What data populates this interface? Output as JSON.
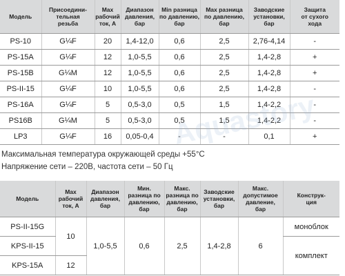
{
  "table1": {
    "header": [
      "Модель",
      "Присоедини-\nтельная\nрезьба",
      "Max\nрабочий\nток, А",
      "Диапазон\nдавления,\nбар",
      "Min разница\nпо давлению,\nбар",
      "Max разница\nпо давлению,\nбар",
      "Заводские\nустановки,\nбар",
      "Защита\nот сухого\nхода"
    ],
    "rows": [
      [
        "PS-10",
        "G¼F",
        "20",
        "1,4-12,0",
        "0,6",
        "2,5",
        "2,76-4,14",
        "-"
      ],
      [
        "PS-15A",
        "G¼F",
        "12",
        "1,0-5,5",
        "0,6",
        "2,5",
        "1,4-2,8",
        "+"
      ],
      [
        "PS-15B",
        "G¼M",
        "12",
        "1,0-5,5",
        "0,6",
        "2,5",
        "1,4-2,8",
        "+"
      ],
      [
        "PS-II-15",
        "G¼F",
        "10",
        "1,0-5,5",
        "0,6",
        "2,5",
        "1,4-2,8",
        "-"
      ],
      [
        "PS-16A",
        "G¼F",
        "5",
        "0,5-3,0",
        "0,5",
        "1,5",
        "1,4-2,2",
        "-"
      ],
      [
        "PS16B",
        "G¼M",
        "5",
        "0,5-3,0",
        "0,5",
        "1,5",
        "1,4-2,2",
        "-"
      ],
      [
        "LP3",
        "G¼F",
        "16",
        "0,05-0,4",
        "-",
        "-",
        "0,1",
        "+"
      ]
    ]
  },
  "notes": [
    "Максимальная температура окружающей среды +55°C",
    "Напряжение сети – 220В, частота сети – 50 Гц"
  ],
  "watermark": "Aquastory",
  "table2": {
    "header": [
      "Модель",
      "Max\nрабочий\nток, А",
      "Диапазон\nдавления,\nбар",
      "Мин.\nразница по\nдавлению,\nбар",
      "Макс.\nразница по\nдавлению,\nбар",
      "Заводские\nустановки,\nбар",
      "Макс.\nдопустимое\nдавление,\nбар",
      "Конструк-\nция"
    ],
    "models": [
      "PS-II-15G",
      "KPS-II-15",
      "KPS-15A"
    ],
    "current": [
      "10",
      "12"
    ],
    "pressure_range": "1,0-5,5",
    "min_diff": "0,6",
    "max_diff": "2,5",
    "factory": "1,4-2,8",
    "max_pressure": "6",
    "construction": [
      "моноблок",
      "комплект"
    ]
  }
}
